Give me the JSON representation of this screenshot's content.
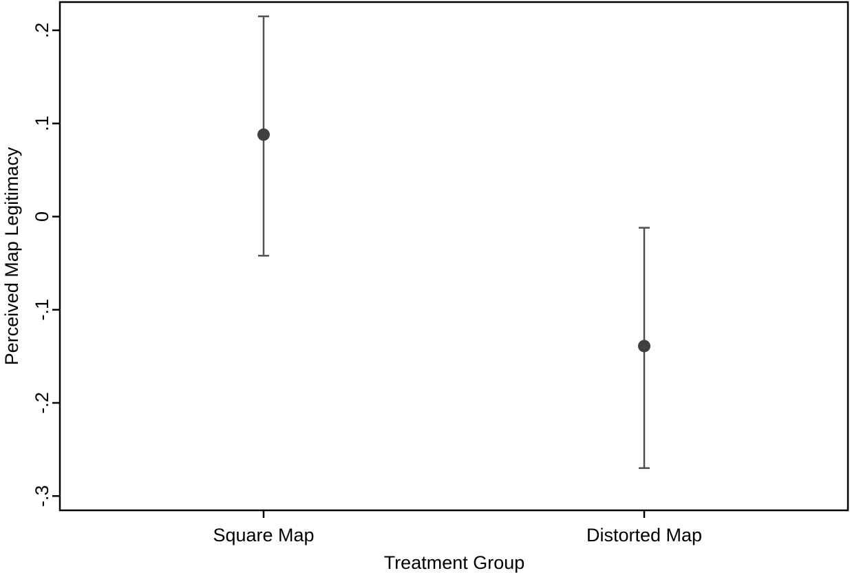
{
  "chart_data": {
    "type": "scatter",
    "subtype": "point-with-error-bars",
    "title": "",
    "xlabel": "Treatment Group",
    "ylabel": "Perceived Map Legitimacy",
    "categories": [
      "Square Map",
      "Distorted Map"
    ],
    "series": [
      {
        "values": [
          0.088,
          -0.139
        ],
        "ci_lower": [
          -0.042,
          -0.27
        ],
        "ci_upper": [
          0.215,
          -0.012
        ]
      }
    ],
    "ylim": [
      -0.313,
      0.232
    ],
    "yticks": [
      0.2,
      0.1,
      0,
      -0.1,
      -0.2,
      -0.3
    ],
    "ytick_labels": [
      ".2",
      ".1",
      "0",
      "-.1",
      "-.2",
      "-.3"
    ],
    "grid": false,
    "legend": "none",
    "colors": {
      "marker": "#3f3f3f",
      "error_bar": "#505050",
      "axis": "#000000"
    }
  }
}
